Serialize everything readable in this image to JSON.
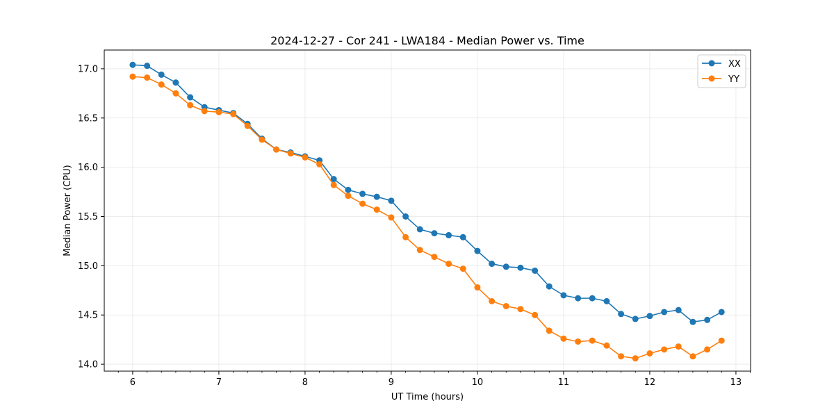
{
  "chart_data": {
    "type": "line",
    "title": "2024-12-27 - Cor 241 - LWA184 - Median Power vs. Time",
    "xlabel": "UT Time (hours)",
    "ylabel": "Median Power (CPU)",
    "xlim": [
      5.67,
      13.17
    ],
    "ylim": [
      13.93,
      17.19
    ],
    "xticks": [
      6,
      7,
      8,
      9,
      10,
      11,
      12,
      13
    ],
    "xtick_labels": [
      "6",
      "7",
      "8",
      "9",
      "10",
      "11",
      "12",
      "13"
    ],
    "yticks": [
      14.0,
      14.5,
      15.0,
      15.5,
      16.0,
      16.5,
      17.0
    ],
    "ytick_labels": [
      "14.0",
      "14.5",
      "15.0",
      "15.5",
      "16.0",
      "16.5",
      "17.0"
    ],
    "grid": true,
    "legend": "top-right",
    "x": [
      6.0,
      6.167,
      6.333,
      6.5,
      6.667,
      6.833,
      7.0,
      7.167,
      7.333,
      7.5,
      7.667,
      7.833,
      8.0,
      8.167,
      8.333,
      8.5,
      8.667,
      8.833,
      9.0,
      9.167,
      9.333,
      9.5,
      9.667,
      9.833,
      10.0,
      10.167,
      10.333,
      10.5,
      10.667,
      10.833,
      11.0,
      11.167,
      11.333,
      11.5,
      11.667,
      11.833,
      12.0,
      12.167,
      12.333,
      12.5,
      12.667,
      12.833
    ],
    "series": [
      {
        "name": "XX",
        "color": "#1f77b4",
        "values": [
          17.04,
          17.03,
          16.94,
          16.86,
          16.71,
          16.61,
          16.58,
          16.55,
          16.44,
          16.29,
          16.18,
          16.15,
          16.11,
          16.07,
          15.88,
          15.77,
          15.73,
          15.7,
          15.66,
          15.5,
          15.37,
          15.33,
          15.31,
          15.29,
          15.15,
          15.02,
          14.99,
          14.98,
          14.95,
          14.79,
          14.7,
          14.67,
          14.67,
          14.64,
          14.51,
          14.46,
          14.49,
          14.53,
          14.55,
          14.43,
          14.45,
          14.53
        ]
      },
      {
        "name": "YY",
        "color": "#ff7f0e",
        "values": [
          16.92,
          16.91,
          16.84,
          16.75,
          16.63,
          16.57,
          16.56,
          16.54,
          16.42,
          16.28,
          16.18,
          16.14,
          16.1,
          16.03,
          15.82,
          15.71,
          15.63,
          15.57,
          15.49,
          15.29,
          15.16,
          15.09,
          15.02,
          14.97,
          14.78,
          14.64,
          14.59,
          14.56,
          14.5,
          14.34,
          14.26,
          14.23,
          14.24,
          14.19,
          14.08,
          14.06,
          14.11,
          14.15,
          14.18,
          14.08,
          14.15,
          14.24
        ]
      }
    ]
  }
}
